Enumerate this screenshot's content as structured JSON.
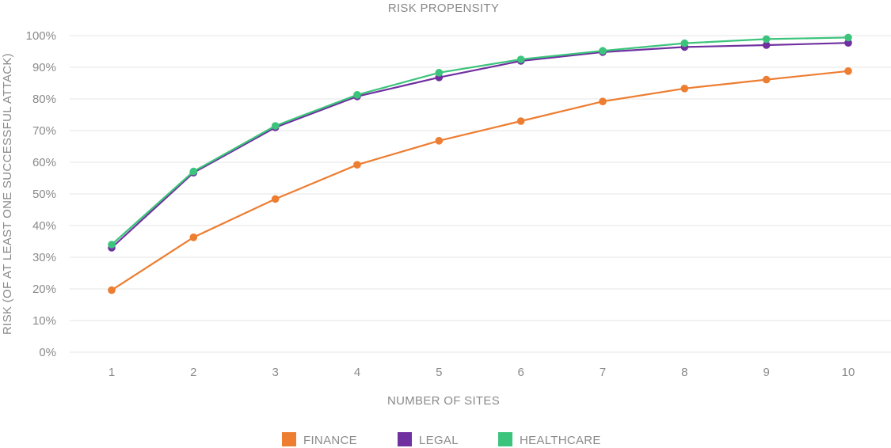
{
  "chart_data": {
    "type": "line",
    "title": "RISK PROPENSITY",
    "xlabel": "NUMBER OF SITES",
    "ylabel": "RISK (OF AT LEAST ONE SUCCESSFUL ATTACK)",
    "x": [
      1,
      2,
      3,
      4,
      5,
      6,
      7,
      8,
      9,
      10
    ],
    "x_tick_labels": [
      "1",
      "2",
      "3",
      "4",
      "5",
      "6",
      "7",
      "8",
      "9",
      "10"
    ],
    "ylim": [
      0,
      100
    ],
    "y_ticks": [
      0,
      10,
      20,
      30,
      40,
      50,
      60,
      70,
      80,
      90,
      100
    ],
    "y_tick_labels": [
      "0%",
      "10%",
      "20%",
      "30%",
      "40%",
      "50%",
      "60%",
      "70%",
      "80%",
      "90%",
      "100%"
    ],
    "grid": true,
    "legend_position": "bottom-center",
    "series": [
      {
        "name": "FINANCE",
        "color": "#ED7D31",
        "values": [
          19.6,
          36.3,
          48.4,
          59.2,
          66.8,
          73.0,
          79.2,
          83.3,
          86.1,
          88.8
        ]
      },
      {
        "name": "LEGAL",
        "color": "#7030A0",
        "values": [
          33.0,
          56.7,
          71.0,
          80.8,
          86.8,
          92.0,
          94.8,
          96.4,
          97.0,
          97.7
        ]
      },
      {
        "name": "HEALTHCARE",
        "color": "#3CC47C",
        "values": [
          34.0,
          57.1,
          71.5,
          81.3,
          88.3,
          92.5,
          95.2,
          97.6,
          98.9,
          99.4
        ]
      }
    ]
  }
}
